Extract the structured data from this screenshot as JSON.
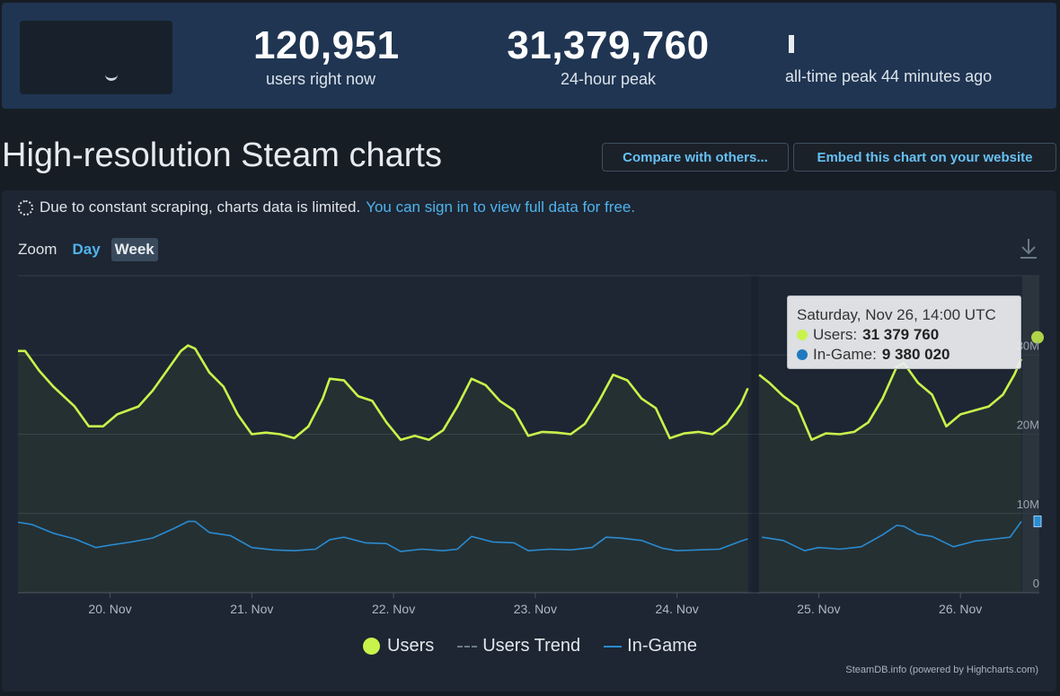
{
  "stats": {
    "now_value": "120,951",
    "now_label": "users right now",
    "peak_value": "31,379,760",
    "peak_label": "24-hour peak",
    "alltime_label": "all-time peak 44 minutes ago"
  },
  "header": {
    "title": "High-resolution Steam charts",
    "compare_button": "Compare with others...",
    "embed_button": "Embed this chart on your website"
  },
  "notice": {
    "text": "Due to constant scraping, charts data is limited.",
    "link": "You can sign in to view full data for free."
  },
  "zoom": {
    "label": "Zoom",
    "day": "Day",
    "week": "Week"
  },
  "tooltip": {
    "title": "Saturday, Nov 26, 14:00 UTC",
    "users_label": "Users:",
    "users_value": "31 379 760",
    "ingame_label": "In-Game:",
    "ingame_value": "9 380 020"
  },
  "legend": {
    "users": "Users",
    "trend": "Users Trend",
    "ingame": "In-Game"
  },
  "credits": "SteamDB.info (powered by Highcharts.com)",
  "colors": {
    "users": "#c8f34a",
    "ingame": "#2a8bd0",
    "accent": "#66c0f4"
  },
  "chart_data": {
    "type": "line",
    "x_ticks": [
      "20. Nov",
      "21. Nov",
      "22. Nov",
      "23. Nov",
      "24. Nov",
      "25. Nov",
      "26. Nov"
    ],
    "y_ticks": [
      "0",
      "10M",
      "20M",
      "30M"
    ],
    "ylim": [
      0,
      40000000
    ],
    "series": [
      {
        "name": "Users",
        "color": "#c8f34a",
        "x": [
          19.35,
          19.4,
          19.5,
          19.6,
          19.75,
          19.85,
          19.95,
          20.05,
          20.2,
          20.3,
          20.4,
          20.5,
          20.55,
          20.6,
          20.7,
          20.8,
          20.9,
          21.0,
          21.1,
          21.2,
          21.3,
          21.4,
          21.5,
          21.55,
          21.65,
          21.75,
          21.85,
          21.95,
          22.05,
          22.15,
          22.25,
          22.35,
          22.45,
          22.55,
          22.65,
          22.75,
          22.85,
          22.95,
          23.05,
          23.15,
          23.25,
          23.35,
          23.45,
          23.55,
          23.65,
          23.75,
          23.85,
          23.95,
          24.05,
          24.15,
          24.25,
          24.35,
          24.45,
          24.5,
          24.58,
          24.65,
          24.75,
          24.85,
          24.95,
          25.05,
          25.15,
          25.25,
          25.35,
          25.45,
          25.55,
          25.6,
          25.7,
          25.8,
          25.9,
          26.0,
          26.1,
          26.2,
          26.3,
          26.38,
          26.43
        ],
        "values": [
          30500000,
          30500000,
          28000000,
          26000000,
          23500000,
          21000000,
          21000000,
          22500000,
          23500000,
          25500000,
          28000000,
          30500000,
          31200000,
          30800000,
          27800000,
          26000000,
          22500000,
          20000000,
          20200000,
          20000000,
          19500000,
          21000000,
          24500000,
          27000000,
          26800000,
          24800000,
          24200000,
          21500000,
          19300000,
          19800000,
          19300000,
          20500000,
          23500000,
          27000000,
          26200000,
          24200000,
          23000000,
          19800000,
          20300000,
          20200000,
          20000000,
          21300000,
          24200000,
          27500000,
          26800000,
          24500000,
          23300000,
          19500000,
          20100000,
          20300000,
          20000000,
          21300000,
          23800000,
          25800000,
          27500000,
          26500000,
          24800000,
          23500000,
          19300000,
          20100000,
          20000000,
          20300000,
          21500000,
          24500000,
          28500000,
          29000000,
          26500000,
          25000000,
          21000000,
          22500000,
          23000000,
          23500000,
          25000000,
          27500000,
          29500000
        ]
      },
      {
        "name": "In-Game",
        "color": "#2a8bd0",
        "x": [
          19.35,
          19.45,
          19.6,
          19.75,
          19.9,
          20.0,
          20.15,
          20.3,
          20.45,
          20.55,
          20.6,
          20.7,
          20.85,
          21.0,
          21.15,
          21.3,
          21.45,
          21.55,
          21.65,
          21.8,
          21.95,
          22.05,
          22.2,
          22.35,
          22.45,
          22.55,
          22.7,
          22.85,
          22.95,
          23.1,
          23.25,
          23.4,
          23.5,
          23.6,
          23.75,
          23.9,
          24.0,
          24.15,
          24.3,
          24.45,
          24.5,
          24.6,
          24.75,
          24.9,
          25.0,
          25.15,
          25.3,
          25.45,
          25.55,
          25.6,
          25.7,
          25.8,
          25.95,
          26.1,
          26.25,
          26.35,
          26.43
        ],
        "values": [
          8900000,
          8600000,
          7500000,
          6800000,
          5700000,
          6000000,
          6400000,
          6900000,
          8100000,
          9000000,
          9000000,
          7600000,
          7200000,
          5700000,
          5400000,
          5300000,
          5500000,
          6700000,
          7000000,
          6300000,
          6200000,
          5200000,
          5500000,
          5300000,
          5500000,
          7100000,
          6400000,
          6300000,
          5300000,
          5500000,
          5400000,
          5700000,
          7000000,
          6900000,
          6600000,
          5600000,
          5300000,
          5400000,
          5500000,
          6500000,
          6800000,
          7000000,
          6600000,
          5300000,
          5700000,
          5500000,
          5800000,
          7300000,
          8500000,
          8400000,
          7400000,
          7100000,
          5800000,
          6500000,
          6800000,
          7000000,
          9000000
        ]
      }
    ]
  }
}
